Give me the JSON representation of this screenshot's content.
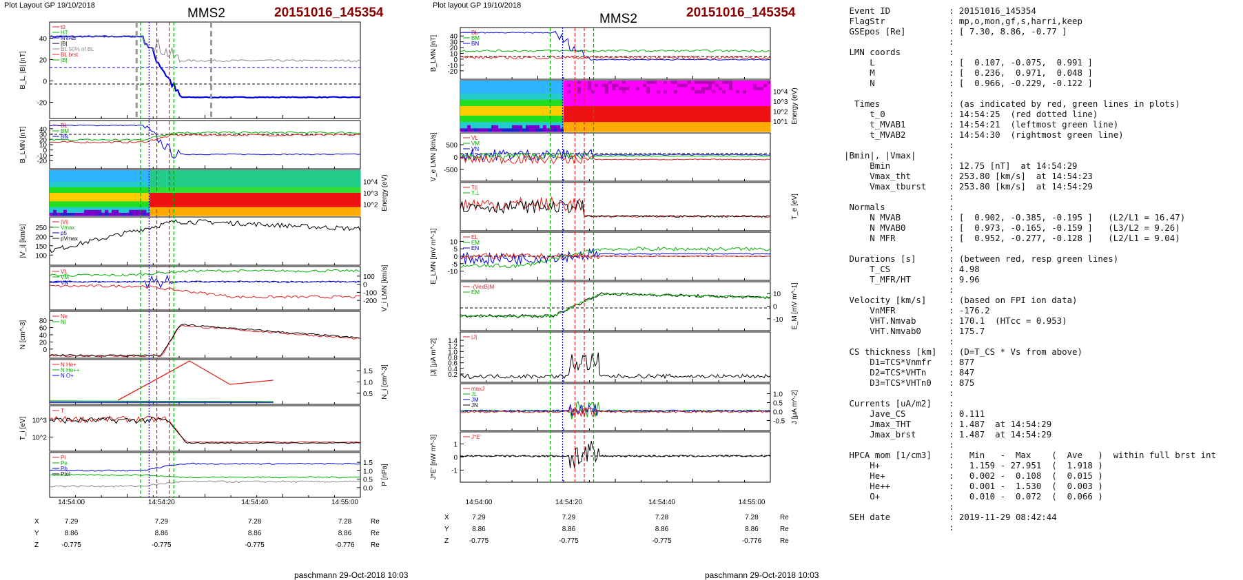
{
  "left_header": {
    "plot_layout": "Plot Layout GP 19/10/2018",
    "spacecraft": "MMS2",
    "event": "20151016_145354"
  },
  "middle_header": {
    "plot_layout": "Plot layout GP 19/10/2018",
    "spacecraft": "MMS2",
    "event": "20151016_145354"
  },
  "footer": {
    "left": "paschmann 29-Oct-2018 10:03",
    "middle": "paschmann 29-Oct-2018 10:03"
  },
  "colors": {
    "event_red": "#8b0000",
    "line_red": "#e02020",
    "line_green": "#00b000",
    "line_blue": "#0000e0",
    "line_gray": "#888888",
    "line_black": "#000000"
  },
  "chart_data": [
    {
      "id": "left-stack",
      "type": "line",
      "x_tick_labels": [
        "14:54:00",
        "14:54:20",
        "14:54:40",
        "14:55:00"
      ],
      "position_table": {
        "rows": [
          {
            "name": "X",
            "values": [
              "7.29",
              "7.29",
              "7.28",
              "7.28"
            ],
            "unit": "Re"
          },
          {
            "name": "Y",
            "values": [
              "8.86",
              "8.86",
              "8.86",
              "8.86"
            ],
            "unit": "Re"
          },
          {
            "name": "Z",
            "values": [
              "-0.775",
              "-0.775",
              "-0.775",
              "-0.776"
            ],
            "unit": "Re"
          }
        ]
      },
      "panels": [
        {
          "ylabel": "B_L, |B| [nT]",
          "y_ticks": [
            "40",
            "20",
            "0",
            "-20"
          ],
          "legend": [
            "t0",
            "HT",
            "MVAB",
            "|B|",
            "BL 50% of BL",
            "BL brst",
            "|B|"
          ]
        },
        {
          "ylabel": "B_LMN [nT]",
          "y_ticks": [
            "40",
            "30",
            "20",
            "10",
            "0",
            "-10",
            "-20"
          ],
          "legend": [
            "BL",
            "BM",
            "BN"
          ]
        },
        {
          "ylabel_right": "Energy (eV)",
          "y_ticks_right": [
            "10^4",
            "10^3",
            "10^2"
          ],
          "type": "spectrogram"
        },
        {
          "ylabel": "|V_i| [km/s]",
          "y_ticks": [
            "250",
            "200",
            "150",
            "100"
          ],
          "legend": [
            "|Vi|",
            "Vmax",
            "p5",
            "pVmax"
          ]
        },
        {
          "ylabel_right": "V_i LMN [km/s]",
          "y_ticks_right": [
            "100",
            "0",
            "-100",
            "-200"
          ],
          "legend": [
            "VL",
            "VM",
            "VN"
          ]
        },
        {
          "ylabel": "N [cm^-3]",
          "y_ticks": [
            "80",
            "60",
            "40",
            "20",
            "0"
          ],
          "legend": [
            "Ne",
            "Ni"
          ]
        },
        {
          "ylabel_right": "N_i [cm^-3]",
          "y_ticks_right": [
            "1.5",
            "1.0",
            "0.5"
          ],
          "legend": [
            "N He+",
            "N He++",
            "N O+"
          ]
        },
        {
          "ylabel": "T_i [eV]",
          "y_ticks": [
            "10^3",
            "10^2"
          ],
          "legend": [
            "T"
          ]
        },
        {
          "ylabel_right": "P [nPa]",
          "y_ticks_right": [
            "1.5",
            "1.0",
            "0.5",
            "0.0"
          ],
          "legend": [
            "Pi",
            "Pe",
            "Pb",
            "Ptot"
          ]
        }
      ]
    },
    {
      "id": "middle-stack",
      "type": "line",
      "x_tick_labels": [
        "14:54:00",
        "14:54:20",
        "14:54:40",
        "14:55:00"
      ],
      "position_table": {
        "rows": [
          {
            "name": "X",
            "values": [
              "7.29",
              "7.29",
              "7.28",
              "7.28"
            ],
            "unit": "Re"
          },
          {
            "name": "Y",
            "values": [
              "8.86",
              "8.86",
              "8.86",
              "8.86"
            ],
            "unit": "Re"
          },
          {
            "name": "Z",
            "values": [
              "-0.775",
              "-0.775",
              "-0.775",
              "-0.776"
            ],
            "unit": "Re"
          }
        ]
      },
      "panels": [
        {
          "ylabel": "B_LMN [nT]",
          "y_ticks": [
            "40",
            "30",
            "20",
            "10",
            "0",
            "-10",
            "-20"
          ],
          "legend": [
            "BL",
            "BM",
            "BN"
          ]
        },
        {
          "ylabel_right": "Energy (eV)",
          "y_ticks_right": [
            "10^4",
            "10^3",
            "10^2",
            "10^1"
          ],
          "type": "spectrogram"
        },
        {
          "ylabel": "V_e LMN [km/s]",
          "y_ticks": [
            "500",
            "0",
            "-500"
          ],
          "legend": [
            "VL",
            "VM",
            "VN"
          ]
        },
        {
          "ylabel_right": "T_e [eV]",
          "y_ticks_right": [],
          "legend": [
            "T||",
            "T⊥"
          ]
        },
        {
          "ylabel": "E_LMN [mV m^-1]",
          "y_ticks": [
            "10",
            "5",
            "0",
            "-5",
            "-10"
          ],
          "legend": [
            "EL",
            "EM",
            "EN"
          ]
        },
        {
          "ylabel_right": "E_M [mV m^-1]",
          "y_ticks_right": [
            "10",
            "0",
            "-10"
          ],
          "legend": [
            "-(VexB)M",
            "EM"
          ]
        },
        {
          "ylabel": "|J| [μA m^-2]",
          "y_ticks": [
            "1.4",
            "1.2",
            "1.0",
            "0.8",
            "0.6",
            "0.4",
            "0.2"
          ],
          "legend": [
            "|J|"
          ]
        },
        {
          "ylabel_right": "J [μA m^-2]",
          "y_ticks_right": [
            "1.0",
            "0.5",
            "0.0",
            "-0.5"
          ],
          "legend": [
            "maxJ",
            "JL",
            "JM",
            "JN"
          ]
        },
        {
          "ylabel": "J*E' [nW m^-3]",
          "y_ticks": [
            "1",
            "0",
            "-1"
          ],
          "legend": [
            "J*E'"
          ]
        }
      ]
    }
  ],
  "summary_rows": [
    [
      " Event ID",
      ": 20151016_145354"
    ],
    [
      " FlagStr",
      ": mp,o,mon,gf,s,harri,keep"
    ],
    [
      " GSEpos [Re]",
      ": [ 7.30, 8.86, -0.77 ]"
    ],
    [
      "",
      ":"
    ],
    [
      " LMN coords",
      ":"
    ],
    [
      "     L",
      ": [  0.107, -0.075,  0.991 ]"
    ],
    [
      "     M",
      ": [  0.236,  0.971,  0.048 ]"
    ],
    [
      "     N",
      ": [  0.966, -0.229, -0.122 ]"
    ],
    [
      "",
      ":"
    ],
    [
      "  Times",
      ": (as indicated by red, green lines in plots)"
    ],
    [
      "     t_0",
      ": 14:54:25  (red dotted line)"
    ],
    [
      "     t_MVAB1",
      ": 14:54:21  (leftmost green line)"
    ],
    [
      "     t_MVAB2",
      ": 14:54:30  (rightmost green line)"
    ],
    [
      "",
      ":"
    ],
    [
      "|Bmin|, |Vmax|",
      ":"
    ],
    [
      "     Bmin",
      ": 12.75 [nT]  at 14:54:29"
    ],
    [
      "     Vmax_tht",
      ": 253.80 [km/s]  at 14:54:23"
    ],
    [
      "     Vmax_tburst",
      ": 253.80 [km/s]  at 14:54:29"
    ],
    [
      "",
      ":"
    ],
    [
      " Normals",
      ":"
    ],
    [
      "     N MVAB",
      ": [  0.902, -0.385, -0.195 ]   (L2/L1 = 16.47)"
    ],
    [
      "     N MVAB0",
      ": [  0.973, -0.165, -0.159 ]   (L3/L2 = 9.26)"
    ],
    [
      "     N MFR",
      ": [  0.952, -0.277, -0.128 ]   (L2/L1 = 9.04)"
    ],
    [
      "",
      ":"
    ],
    [
      " Durations [s]",
      ": (between red, resp green lines)"
    ],
    [
      "     T_CS",
      ": 4.98"
    ],
    [
      "     T_MFR/HT",
      ": 9.96"
    ],
    [
      "",
      ":"
    ],
    [
      " Velocity [km/s]",
      ": (based on FPI ion data)"
    ],
    [
      "     VnMFR",
      ": -176.2"
    ],
    [
      "     VHT.Nmvab",
      ": 170.1  (HTcc = 0.953)"
    ],
    [
      "     VHT.Nmvab0",
      ": 175.7"
    ],
    [
      "",
      ":"
    ],
    [
      " CS thickness [km]",
      ": (D=T_CS * Vs from above)"
    ],
    [
      "     D1=TCS*Vnmfr",
      ": 877"
    ],
    [
      "     D2=TCS*VHTn",
      ": 847"
    ],
    [
      "     D3=TCS*VHTn0",
      ": 875"
    ],
    [
      "",
      ":"
    ],
    [
      " Currents [uA/m2]",
      ":"
    ],
    [
      "     Jave_CS",
      ": 0.111"
    ],
    [
      "     Jmax_THT",
      ": 1.487  at 14:54:29"
    ],
    [
      "     Jmax_brst",
      ": 1.487  at 14:54:29"
    ],
    [
      "",
      ":"
    ],
    [
      " HPCA mom [1/cm3]",
      ":   Min   -  Max    (  Ave   )  within full brst int"
    ],
    [
      "     H+",
      ":   1.159 - 27.951  (  1.918 )"
    ],
    [
      "     He+",
      ":   0.002 -  0.108  (  0.015 )"
    ],
    [
      "     He++",
      ":   0.001 -  1.530  (  0.003 )"
    ],
    [
      "     O+",
      ":   0.010 -  0.072  (  0.066 )"
    ],
    [
      "",
      ":"
    ],
    [
      " SEH date",
      ": 2019-11-29 08:42:44"
    ],
    [
      "",
      ":"
    ]
  ]
}
